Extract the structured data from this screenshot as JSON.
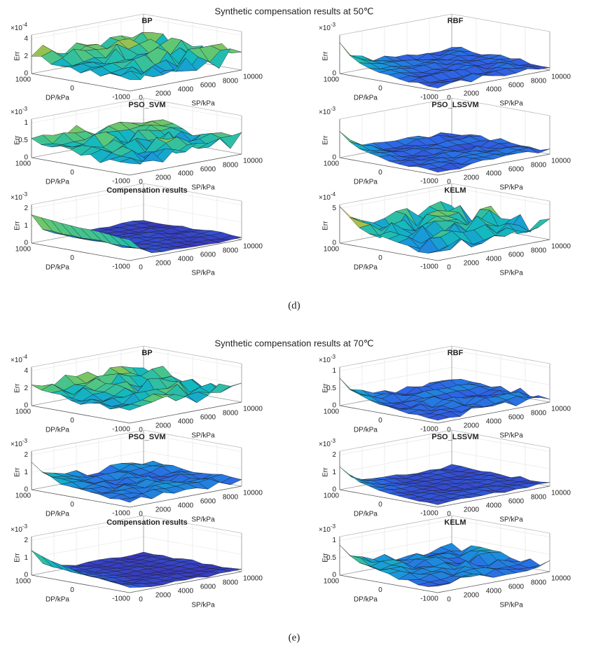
{
  "labels": {
    "z": "Err",
    "dp": "DP/kPa",
    "sp": "SP/kPa",
    "exponent_base": "×10"
  },
  "dp_ticks": [
    "1000",
    "0",
    "-1000"
  ],
  "sp_ticks": [
    "0",
    "2000",
    "4000",
    "6000",
    "8000",
    "10000"
  ],
  "panels": [
    {
      "title": "Synthetic compensation results at 50℃",
      "caption": "(d)",
      "plots": [
        {
          "title": "BP",
          "exponent": "-4",
          "zticks": [
            "0",
            "2",
            "4"
          ]
        },
        {
          "title": "RBF",
          "exponent": "-3",
          "zticks": [
            "0"
          ]
        },
        {
          "title": "PSO_SVM",
          "exponent": "-3",
          "zticks": [
            "0",
            "0.5",
            "1"
          ]
        },
        {
          "title": "PSO_LSSVM",
          "exponent": "-3",
          "zticks": [
            "0"
          ]
        },
        {
          "title": "Compensation results",
          "exponent": "-3",
          "zticks": [
            "0",
            "1",
            "2"
          ]
        },
        {
          "title": "KELM",
          "exponent": "-4",
          "zticks": [
            "0",
            "5"
          ]
        }
      ]
    },
    {
      "title": "Synthetic compensation results at 70℃",
      "caption": "(e)",
      "plots": [
        {
          "title": "BP",
          "exponent": "-4",
          "zticks": [
            "0",
            "2",
            "4"
          ]
        },
        {
          "title": "RBF",
          "exponent": "-3",
          "zticks": [
            "0",
            "0.5",
            "1"
          ]
        },
        {
          "title": "PSO_SVM",
          "exponent": "-3",
          "zticks": [
            "0",
            "1",
            "2"
          ]
        },
        {
          "title": "PSO_LSSVM",
          "exponent": "-3",
          "zticks": [
            "0",
            "1",
            "2"
          ]
        },
        {
          "title": "Compensation results",
          "exponent": "-3",
          "zticks": [
            "0",
            "1",
            "2"
          ]
        },
        {
          "title": "KELM",
          "exponent": "-3",
          "zticks": [
            "0",
            "0.5",
            "1"
          ]
        }
      ]
    }
  ]
}
